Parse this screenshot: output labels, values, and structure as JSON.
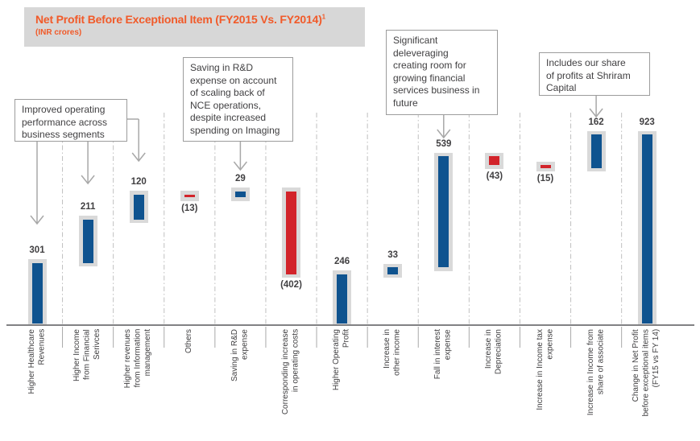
{
  "header": {
    "title": "Net Profit Before Exceptional Item (FY2015 Vs. FY2014)",
    "superscript": "1",
    "subtitle": "(INR crores)"
  },
  "callouts": [
    {
      "text": "Improved operating\nperformance across\nbusiness segments"
    },
    {
      "text": "Saving in R&D\nexpense on account\nof scaling back of\nNCE operations,\ndespite increased\nspending on Imaging"
    },
    {
      "text": "Significant\ndeleveraging\ncreating room for\ngrowing financial\nservices business in\nfuture"
    },
    {
      "text": "Includes our share\nof profits at Shriram\nCapital"
    }
  ],
  "chart_data": {
    "type": "bar",
    "subtype": "waterfall",
    "title": "Net Profit Before Exceptional Item (FY2015 Vs. FY2014)",
    "unit": "INR crores",
    "baseline": 0,
    "ylim": [
      0,
      950
    ],
    "grid": "dashed vertical separators between categories",
    "categories": [
      "Higher Healthcare\nRevenues",
      "Higher Income\nfrom Financial\nSerivces",
      "Higher revenues\nfrom Information\nmanagement",
      "Others",
      "Saving in R&D\nexpense",
      "Corresponding increase\nin operating costs",
      "Higher Operating\nProfit",
      "Increase in\nother income",
      "Fall in interest\nexpense",
      "Increase in\nDepreciation",
      "Increase in  Income tax\nexpense",
      "Increase in Income from\nshare of associate",
      "Change in Net Profit\nbefore exceptional items\n(FY15 vs FY 14)"
    ],
    "values": [
      301,
      211,
      120,
      -13,
      29,
      -402,
      246,
      33,
      539,
      -43,
      -15,
      162,
      923
    ],
    "value_labels": [
      "301",
      "211",
      "120",
      "(13)",
      "29",
      "(402)",
      "246",
      "33",
      "539",
      "(43)",
      "(15)",
      "162",
      "923"
    ],
    "kinds": [
      "delta",
      "delta",
      "delta",
      "delta",
      "delta",
      "delta",
      "total",
      "delta",
      "delta",
      "delta",
      "delta",
      "delta",
      "total"
    ],
    "colors": {
      "positive": "#0f538f",
      "negative": "#d2232a",
      "bar_background_pad": "#d9d9d9",
      "title_accent": "#f15a29",
      "banner_background": "#d7d7d7",
      "connector_gray": "#a8a8a8",
      "separator_gray": "#c0c0c0",
      "axis_line": "#58595b",
      "text": "#414042"
    }
  }
}
